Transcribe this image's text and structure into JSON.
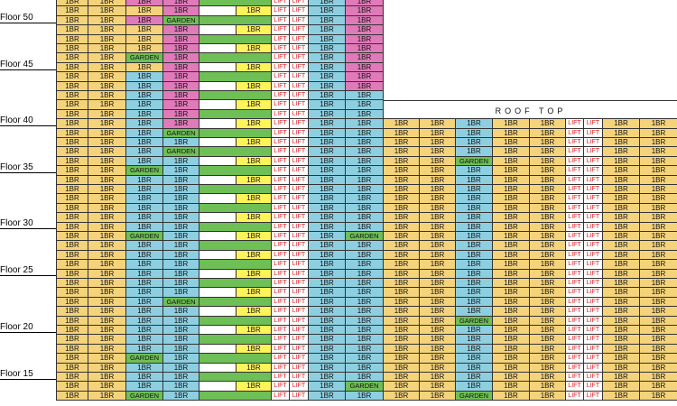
{
  "colors": {
    "Y": "#f4d37b",
    "P": "#e07ab9",
    "B": "#8dcfe0",
    "G": "#6ebf55",
    "W": "#ffffff",
    "L": "#ffffff",
    "YL": "#fff35a"
  },
  "floor_labels": [
    "Floor 50",
    "Floor 45",
    "Floor 40",
    "Floor 35",
    "Floor 30",
    "Floor 25",
    "Floor 20",
    "Floor 15"
  ],
  "roof": {
    "label": "ROOF TOP"
  },
  "text": {
    "unit": "1BR",
    "lift": "LIFT",
    "garden": "GARDEN"
  },
  "left_rows": [
    "YY:P:P:Y:G:L:L:P",
    "YY:Y:P:Y:W:L:L:P",
    "YY:P:G:Y:G:L:L:P",
    "YY:Y:P:Y:W:L:L:P",
    "YY:Y:P:Y:G:L:L:P",
    "YY:Y:P:Y:W:L:L:P",
    "YY:G:P:Y:G:L:L:P",
    "YY:Y:P:Y:W:L:L:P",
    "YY:B:P:Y:G:L:L:P",
    "YY:B:P:Y:W:L:L:P",
    "YY:B:P:Y:G:L:L:B",
    "YY:B:P:Y:W:L:L:B",
    "YY:B:P:Y:G:L:L:B",
    "YY:B:P:Y:W:L:L:B",
    "YY:B:G:Y:G:L:L:B",
    "YY:B:B:Y:W:L:L:B",
    "YY:B:G:Y:G:L:L:B",
    "YY:B:B:Y:W:L:L:B",
    "YY:G:B:Y:G:L:L:B",
    "YY:B:B:Y:W:L:L:B",
    "YY:B:B:Y:G:L:L:B",
    "YY:B:B:Y:W:L:L:B",
    "YY:B:B:Y:G:L:L:B",
    "YY:B:B:Y:W:L:L:B",
    "YY:B:B:Y:G:L:L:B",
    "YY:G:B:Y:W:L:L:G",
    "YY:B:B:Y:G:L:L:B",
    "YY:B:B:Y:W:L:L:B",
    "YY:B:B:Y:G:L:L:B",
    "YY:B:B:Y:W:L:L:B",
    "YY:B:B:Y:G:L:L:B",
    "YY:B:B:Y:W:L:L:B",
    "YY:B:G:Y:G:L:L:B",
    "YY:B:B:Y:W:L:L:B",
    "YY:B:B:Y:G:L:L:B",
    "YY:B:B:Y:W:L:L:B",
    "YY:B:B:Y:G:L:L:B",
    "YY:B:B:Y:W:L:L:B",
    "YY:G:B:Y:G:L:L:B",
    "YY:B:B:Y:W:L:L:B",
    "YY:B:B:Y:G:L:L:B",
    "YY:B:B:Y:W:L:L:G",
    "YY:G:B:Y:G:L:L:B"
  ],
  "right_rows": [
    "Y:Y:B:Y:Y:L:L:Y:Y",
    "Y:Y:B:Y:Y:L:L:Y:Y",
    "Y:Y:B:Y:Y:L:L:Y:Y",
    "Y:Y:B:Y:Y:L:L:Y:Y",
    "Y:Y:G:Y:Y:L:L:Y:Y",
    "Y:Y:B:Y:Y:L:L:Y:Y",
    "Y:Y:B:Y:Y:L:L:Y:Y",
    "Y:Y:B:Y:Y:L:L:Y:Y",
    "Y:Y:B:Y:Y:L:L:Y:Y",
    "Y:Y:B:Y:Y:L:L:Y:Y",
    "Y:Y:B:Y:Y:L:L:Y:Y",
    "Y:Y:B:Y:Y:L:L:Y:Y",
    "Y:Y:B:Y:Y:L:L:Y:Y",
    "Y:Y:B:Y:Y:L:L:Y:Y",
    "Y:Y:B:Y:Y:L:L:Y:Y",
    "Y:Y:B:Y:Y:L:L:Y:Y",
    "Y:Y:B:Y:Y:L:L:Y:Y",
    "Y:Y:B:Y:Y:L:L:Y:Y",
    "Y:Y:B:Y:Y:L:L:Y:Y",
    "Y:Y:B:Y:Y:L:L:Y:Y",
    "Y:Y:B:Y:Y:L:L:Y:Y",
    "Y:Y:G:Y:Y:L:L:Y:Y",
    "Y:Y:B:Y:Y:L:L:Y:Y",
    "Y:Y:B:Y:Y:L:L:Y:Y",
    "Y:Y:B:Y:Y:L:L:Y:Y",
    "Y:Y:B:Y:Y:L:L:Y:Y",
    "Y:Y:B:Y:Y:L:L:Y:Y",
    "Y:Y:B:Y:Y:L:L:Y:Y",
    "Y:Y:B:Y:Y:L:L:Y:Y",
    "Y:Y:G:Y:Y:L:L:Y:Y"
  ]
}
